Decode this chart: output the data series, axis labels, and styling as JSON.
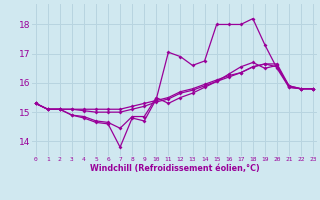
{
  "bg_color": "#d0e8f0",
  "line_color": "#990099",
  "grid_color": "#b8d4e0",
  "xlabel": "Windchill (Refroidissement éolien,°C)",
  "xlabel_color": "#990099",
  "tick_color": "#990099",
  "x_ticks": [
    0,
    1,
    2,
    3,
    4,
    5,
    6,
    7,
    8,
    9,
    10,
    11,
    12,
    13,
    14,
    15,
    16,
    17,
    18,
    19,
    20,
    21,
    22,
    23
  ],
  "y_ticks": [
    14,
    15,
    16,
    17,
    18
  ],
  "xlim": [
    -0.3,
    23.3
  ],
  "ylim": [
    13.5,
    18.7
  ],
  "series": [
    [
      15.3,
      15.1,
      15.1,
      14.9,
      14.8,
      14.65,
      14.6,
      13.8,
      14.8,
      14.7,
      15.45,
      17.05,
      16.9,
      16.6,
      16.75,
      18.0,
      18.0,
      18.0,
      18.2,
      17.3,
      16.5,
      15.85,
      15.8,
      15.8
    ],
    [
      15.3,
      15.1,
      15.1,
      14.9,
      14.85,
      14.7,
      14.65,
      14.45,
      14.85,
      14.85,
      15.5,
      15.3,
      15.5,
      15.65,
      15.85,
      16.05,
      16.3,
      16.55,
      16.7,
      16.5,
      16.6,
      15.85,
      15.8,
      15.8
    ],
    [
      15.3,
      15.1,
      15.1,
      15.1,
      15.05,
      15.0,
      15.0,
      15.0,
      15.1,
      15.2,
      15.35,
      15.45,
      15.65,
      15.75,
      15.9,
      16.05,
      16.2,
      16.35,
      16.55,
      16.65,
      16.55,
      15.9,
      15.8,
      15.8
    ],
    [
      15.3,
      15.1,
      15.1,
      15.1,
      15.1,
      15.1,
      15.1,
      15.1,
      15.2,
      15.3,
      15.4,
      15.5,
      15.7,
      15.8,
      15.95,
      16.1,
      16.25,
      16.35,
      16.55,
      16.65,
      16.65,
      15.9,
      15.8,
      15.8
    ]
  ]
}
